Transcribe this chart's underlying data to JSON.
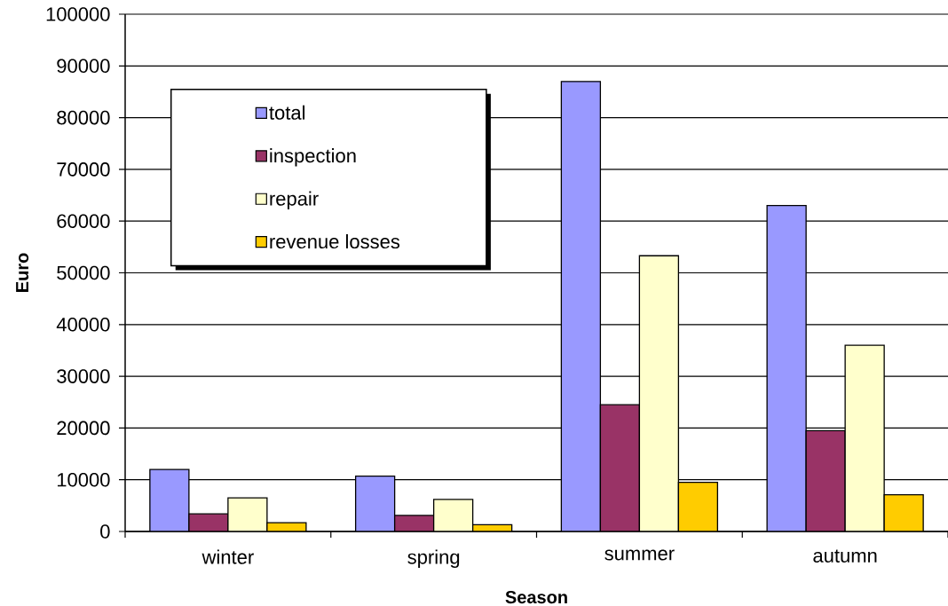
{
  "chart_data": {
    "type": "bar",
    "xlabel": "Season",
    "ylabel": "Euro",
    "categories": [
      "winter",
      "spring",
      "summer",
      "autumn"
    ],
    "series": [
      {
        "name": "total",
        "color": "#9999ff",
        "values": [
          12000,
          10700,
          87000,
          63000
        ]
      },
      {
        "name": "inspection",
        "color": "#993366",
        "values": [
          3400,
          3100,
          24500,
          19500
        ]
      },
      {
        "name": "repair",
        "color": "#ffffcc",
        "values": [
          6500,
          6200,
          53300,
          36000
        ]
      },
      {
        "name": "revenue losses",
        "color": "#ffcc00",
        "values": [
          1700,
          1300,
          9500,
          7100
        ]
      }
    ],
    "ylim": [
      0,
      100000
    ],
    "yticks": [
      0,
      10000,
      20000,
      30000,
      40000,
      50000,
      60000,
      70000,
      80000,
      90000,
      100000
    ],
    "grid": "y",
    "legend": "top left"
  }
}
